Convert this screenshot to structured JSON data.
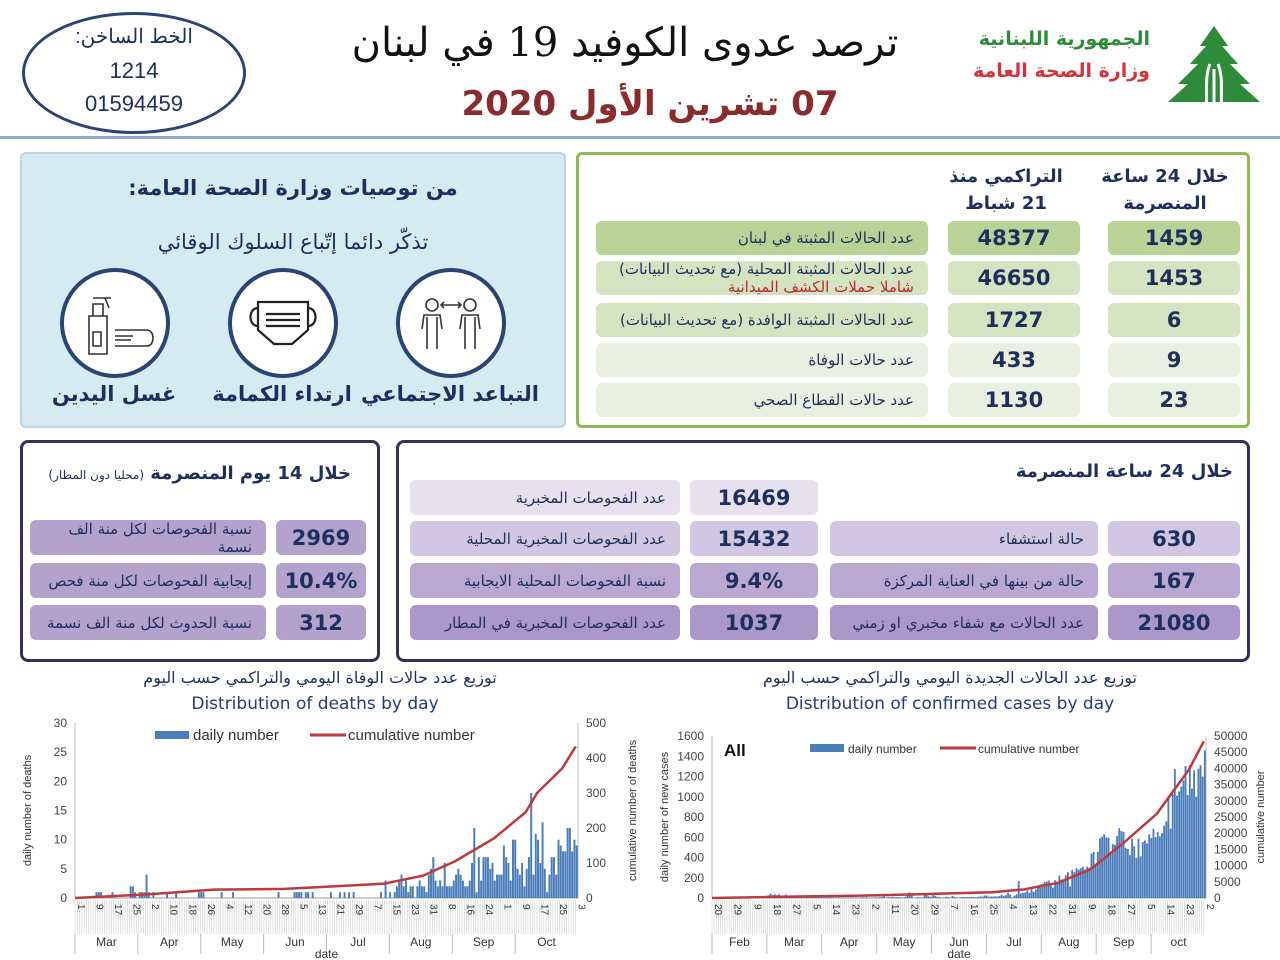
{
  "header": {
    "hotline_label": "الخط الساخن:",
    "hotline_numbers": [
      "1214",
      "01594459"
    ],
    "title": "ترصد عدوى الكوفيد 19 في لبنان",
    "date": "07 تشرين الأول 2020",
    "republic": "الجمهورية اللبنانية",
    "ministry": "وزارة الصحة العامة",
    "logo_icon": "cedar-tree-icon"
  },
  "recommendations": {
    "heading": "من توصيات وزارة الصحة العامة:",
    "subheading": "تذكّر دائما إتّباع السلوك الوقائي",
    "items": [
      {
        "label": "التباعد الاجتماعي",
        "icon": "social-distancing-icon"
      },
      {
        "label": "ارتداء الكمامة",
        "icon": "face-mask-icon"
      },
      {
        "label": "غسل اليدين",
        "icon": "hand-sanitizer-icon"
      }
    ]
  },
  "summary": {
    "col_24h": "خلال 24 ساعة المنصرمة",
    "col_cum": "التراكمي منذ 21 شباط",
    "rows": [
      {
        "label": "عدد الحالات المثبتة في لبنان",
        "note": "",
        "cumulative": "48377",
        "daily": "1459"
      },
      {
        "label": "عدد الحالات المثبتة المحلية (مع تحديث البيانات)",
        "note": "شاملا حملات الكشف الميدانية",
        "cumulative": "46650",
        "daily": "1453"
      },
      {
        "label": "عدد الحالات المثبتة الوافدة (مع تحديث البيانات)",
        "note": "",
        "cumulative": "1727",
        "daily": "6"
      },
      {
        "label": "عدد حالات الوفاة",
        "note": "",
        "cumulative": "433",
        "daily": "9"
      },
      {
        "label": "عدد حالات القطاع الصحي",
        "note": "",
        "cumulative": "1130",
        "daily": "23"
      }
    ],
    "colors": {
      "border": "#8dbb4f",
      "row_dark": "#b9d396",
      "row_mid": "#d4e4c0",
      "row_light": "#eaf0e0"
    }
  },
  "last14": {
    "heading": "خلال 14 يوم المنصرمة",
    "heading_note": "(محليا دون المطار)",
    "rows": [
      {
        "label": "نسبة الفحوصات لكل منة الف نسمة",
        "value": "2969"
      },
      {
        "label": "إيجابية الفحوصات لكل منة فحص",
        "value": "10.4%"
      },
      {
        "label": "نسبة الحدوث لكل منة الف نسمة",
        "value": "312"
      }
    ]
  },
  "last24": {
    "heading": "خلال 24 ساعة المنصرمة",
    "tests": [
      {
        "label": "عدد الفحوصات المخبرية",
        "value": "16469"
      },
      {
        "label": "عدد الفحوصات المخبرية  المحلية",
        "value": "15432"
      },
      {
        "label": "نسبة الفحوصات المحلية الايجابية",
        "value": "9.4%"
      },
      {
        "label": "عدد الفحوصات المخبرية في المطار",
        "value": "1037"
      }
    ],
    "hospital": [
      {
        "label": "حالة استشفاء",
        "value": "630"
      },
      {
        "label": "حالة من بينها في العناية المركزة",
        "value": "167"
      },
      {
        "label": "عدد الحالات مع شفاء مخبري او زمني",
        "value": "21080"
      }
    ]
  },
  "chart_data": [
    {
      "type": "bar+line",
      "title_ar": "توزيع عدد حالات  الوفاة اليومي والتراكمي حسب اليوم",
      "title": "Distribution of deaths by day",
      "xlabel": "date",
      "ylabel": "daily number of deaths",
      "y2label": "cumulative number of deaths",
      "ylim": [
        0,
        30
      ],
      "yticks": [
        0,
        5,
        10,
        15,
        20,
        25,
        30
      ],
      "y2lim": [
        0,
        500
      ],
      "y2ticks": [
        0,
        100,
        200,
        300,
        400,
        500
      ],
      "legend": [
        "daily number",
        "cumulative number"
      ],
      "legend_position": "top",
      "start_date": "2020-03-01",
      "day_ticks": [
        "1",
        "9",
        "17",
        "25",
        "2",
        "10",
        "18",
        "26",
        "4",
        "12",
        "20",
        "28",
        "5",
        "13",
        "21",
        "29",
        "7",
        "15",
        "23",
        "31",
        "8",
        "16",
        "24",
        "1",
        "9",
        "17",
        "25",
        "3"
      ],
      "months": [
        "Mar",
        "Apr",
        "May",
        "Jun",
        "Jul",
        "Aug",
        "Sep",
        "Oct"
      ],
      "daily": [
        0,
        0,
        0,
        0,
        0,
        0,
        0,
        0,
        0,
        1,
        1,
        1,
        0,
        0,
        0,
        0,
        1,
        0,
        0,
        0,
        0,
        0,
        0,
        0,
        2,
        2,
        1,
        0,
        1,
        1,
        1,
        4,
        1,
        0,
        1,
        0,
        0,
        0,
        0,
        0,
        1,
        0,
        0,
        0,
        1,
        0,
        0,
        0,
        0,
        0,
        0,
        0,
        0,
        0,
        1,
        1,
        1,
        0,
        0,
        0,
        0,
        0,
        0,
        0,
        1,
        0,
        0,
        0,
        0,
        1,
        0,
        0,
        0,
        0,
        0,
        0,
        0,
        0,
        0,
        0,
        0,
        0,
        0,
        0,
        0,
        0,
        0,
        0,
        0,
        1,
        0,
        0,
        0,
        0,
        0,
        0,
        1,
        1,
        1,
        1,
        0,
        1,
        1,
        0,
        1,
        0,
        0,
        0,
        0,
        0,
        0,
        0,
        1,
        0,
        0,
        0,
        1,
        0,
        1,
        0,
        1,
        0,
        1,
        0,
        0,
        0,
        0,
        0,
        0,
        0,
        0,
        0,
        0,
        0,
        1,
        0,
        3,
        0,
        1,
        0,
        1,
        2,
        3,
        4,
        2,
        3,
        1,
        2,
        2,
        0,
        2,
        3,
        2,
        2,
        1,
        4,
        5,
        7,
        3,
        2,
        3,
        2,
        6,
        2,
        2,
        2,
        3,
        4,
        5,
        4,
        3,
        2,
        2,
        3,
        6,
        12,
        1,
        7,
        3,
        7,
        7,
        7,
        5,
        6,
        3,
        4,
        4,
        4,
        9,
        7,
        6,
        3,
        10,
        10,
        5,
        4,
        6,
        2,
        5,
        7,
        18,
        4,
        11,
        10,
        6,
        13,
        5,
        1,
        4,
        7,
        7,
        4,
        10,
        9,
        8,
        8,
        12,
        12,
        8,
        10,
        9
      ],
      "cumulative": [
        [
          "2020-03-01",
          0
        ],
        [
          "2020-04-01",
          10
        ],
        [
          "2020-05-01",
          24
        ],
        [
          "2020-06-01",
          26
        ],
        [
          "2020-07-01",
          36
        ],
        [
          "2020-07-15",
          41
        ],
        [
          "2020-08-01",
          64
        ],
        [
          "2020-08-15",
          105
        ],
        [
          "2020-09-01",
          170
        ],
        [
          "2020-09-15",
          245
        ],
        [
          "2020-09-20",
          300
        ],
        [
          "2020-10-01",
          370
        ],
        [
          "2020-10-07",
          433
        ]
      ],
      "colors": {
        "bar": "#4a7ebb",
        "line": "#c0393b"
      }
    },
    {
      "type": "bar+line",
      "title_ar": "توزيع عدد الحالات الجديدة اليومي والتراكمي حسب اليوم",
      "title": "Distribution of confirmed cases by day",
      "annotation": "All",
      "xlabel": "date",
      "ylabel": "daily number of new cases",
      "y2label": "cumulative number",
      "ylim": [
        0,
        1600
      ],
      "yticks": [
        0,
        200,
        400,
        600,
        800,
        1000,
        1200,
        1400,
        1600
      ],
      "y2lim": [
        0,
        50000
      ],
      "y2ticks": [
        0,
        5000,
        10000,
        15000,
        20000,
        25000,
        30000,
        35000,
        40000,
        45000,
        50000
      ],
      "legend": [
        "daily number",
        "cumulative number"
      ],
      "legend_position": "top",
      "start_date": "2020-02-20",
      "day_ticks": [
        "20",
        "29",
        "9",
        "18",
        "27",
        "5",
        "14",
        "23",
        "2",
        "11",
        "20",
        "29",
        "7",
        "16",
        "25",
        "4",
        "13",
        "22",
        "31",
        "9",
        "18",
        "27",
        "5",
        "14",
        "23",
        "2"
      ],
      "months": [
        "Feb",
        "Mar",
        "Apr",
        "May",
        "Jun",
        "Jul",
        "Aug",
        "Sep",
        "oct"
      ],
      "daily": [
        1,
        0,
        0,
        0,
        0,
        0,
        1,
        0,
        1,
        0,
        3,
        3,
        2,
        3,
        3,
        4,
        4,
        6,
        8,
        9,
        9,
        10,
        13,
        16,
        17,
        22,
        27,
        43,
        30,
        35,
        28,
        37,
        24,
        19,
        34,
        21,
        18,
        23,
        18,
        16,
        17,
        18,
        16,
        8,
        8,
        7,
        5,
        7,
        6,
        19,
        7,
        6,
        5,
        8,
        6,
        10,
        4,
        5,
        4,
        5,
        4,
        4,
        0,
        5,
        3,
        6,
        1,
        6,
        2,
        4,
        8,
        4,
        8,
        4,
        4,
        4,
        6,
        4,
        8,
        10,
        27,
        2,
        9,
        8,
        12,
        9,
        8,
        9,
        6,
        6,
        11,
        36,
        55,
        26,
        3,
        5,
        9,
        1,
        7,
        33,
        36,
        16,
        13,
        31,
        21,
        12,
        9,
        3,
        6,
        12,
        11,
        6,
        20,
        11,
        6,
        5,
        8,
        11,
        10,
        10,
        10,
        11,
        9,
        7,
        11,
        16,
        14,
        24,
        24,
        14,
        15,
        14,
        17,
        14,
        20,
        32,
        20,
        27,
        52,
        34,
        5,
        24,
        37,
        166,
        45,
        51,
        56,
        76,
        52,
        88,
        61,
        85,
        110,
        131,
        138,
        156,
        163,
        172,
        132,
        102,
        175,
        155,
        222,
        182,
        168,
        225,
        255,
        114,
        278,
        255,
        294,
        279,
        295,
        309,
        282,
        309,
        300,
        439,
        456,
        332,
        456,
        589,
        605,
        628,
        598,
        594,
        437,
        532,
        525,
        613,
        689,
        662,
        653,
        496,
        485,
        424,
        584,
        511,
        397,
        586,
        411,
        553,
        568,
        539,
        629,
        592,
        683,
        601,
        654,
        609,
        641,
        714,
        758,
        1006,
        686,
        1027,
        1273,
        1011,
        1053,
        1100,
        1160,
        1303,
        1017,
        1314,
        1080,
        1260,
        1002,
        1277,
        1312,
        1200,
        1459
      ],
      "cumulative": [
        [
          "2020-02-20",
          1
        ],
        [
          "2020-03-31",
          470
        ],
        [
          "2020-04-30",
          725
        ],
        [
          "2020-05-31",
          1220
        ],
        [
          "2020-06-30",
          1780
        ],
        [
          "2020-07-15",
          2660
        ],
        [
          "2020-07-31",
          4730
        ],
        [
          "2020-08-15",
          8880
        ],
        [
          "2020-08-31",
          17300
        ],
        [
          "2020-09-15",
          26000
        ],
        [
          "2020-09-30",
          39600
        ],
        [
          "2020-10-07",
          48377
        ]
      ],
      "colors": {
        "bar": "#4a7ebb",
        "line": "#c0393b"
      }
    }
  ]
}
